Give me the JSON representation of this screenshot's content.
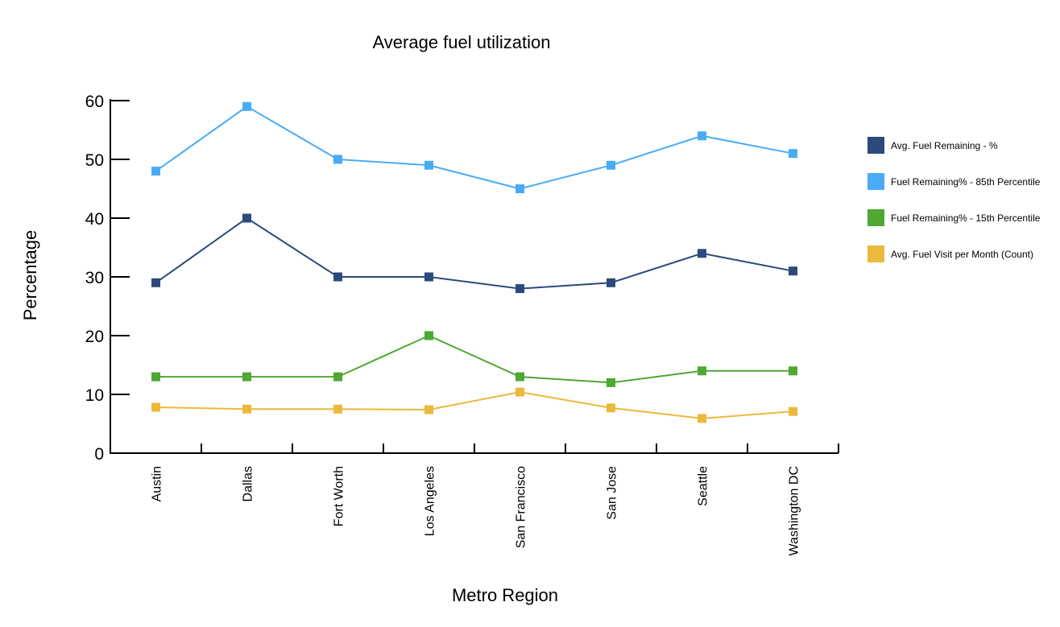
{
  "chart_data": {
    "type": "line",
    "title": "Average fuel utilization",
    "xlabel": "Metro Region",
    "ylabel": "Percentage",
    "ylim": [
      0,
      60
    ],
    "yticks": [
      0,
      10,
      20,
      30,
      40,
      50,
      60
    ],
    "grid": false,
    "legend_position": "right",
    "categories": [
      "Austin",
      "Dallas",
      "Fort Worth",
      "Los Angeles",
      "San Francisco",
      "San Jose",
      "Seattle",
      "Washington DC"
    ],
    "series": [
      {
        "name": "Avg. Fuel Remaining - %",
        "color": "#2c4a7c",
        "values": [
          29,
          40,
          30,
          30,
          28,
          29,
          34,
          31
        ]
      },
      {
        "name": "Fuel Remaining% - 85th Percentile",
        "color": "#4aabf5",
        "values": [
          48,
          59,
          50,
          49,
          45,
          49,
          54,
          51
        ]
      },
      {
        "name": "Fuel Remaining% - 15th Percentile",
        "color": "#4ea832",
        "values": [
          13,
          13,
          13,
          20,
          13,
          12,
          14,
          14
        ]
      },
      {
        "name": "Avg. Fuel Visit per Month (Count)",
        "color": "#ebb93c",
        "values": [
          7.8,
          7.5,
          7.5,
          7.4,
          10.4,
          7.7,
          5.9,
          7.1
        ]
      }
    ]
  }
}
